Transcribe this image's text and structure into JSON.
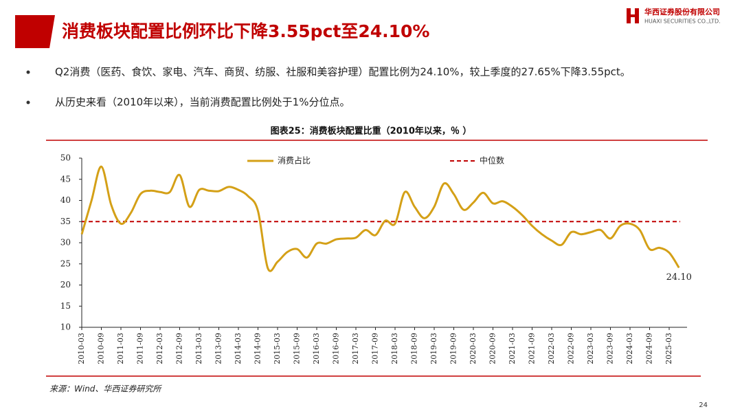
{
  "header": {
    "title": "消费板块配置比例环比下降3.55pct至24.10%",
    "logo_cn": "华西证券股份有限公司",
    "logo_en": "HUAXI SECURITIES CO.,LTD."
  },
  "bullets": [
    "Q2消费（医药、食饮、家电、汽车、商贸、纺服、社服和美容护理）配置比例为24.10%，较上季度的27.65%下降3.55pct。",
    "从历史来看（2010年以来），当前消费配置比例处于1%分位点。"
  ],
  "source": "来源：Wind、华西证券研究所",
  "page_number": "24",
  "chart_data": {
    "type": "line",
    "title": "图表25：消费板块配置比重（2010年以来，％ ）",
    "categories": [
      "2010-03",
      null,
      "2010-09",
      null,
      "2011-03",
      null,
      "2011-09",
      null,
      "2012-03",
      null,
      "2012-09",
      null,
      "2013-03",
      null,
      "2013-09",
      null,
      "2014-03",
      null,
      "2014-09",
      null,
      "2015-03",
      null,
      "2015-09",
      null,
      "2016-03",
      null,
      "2016-09",
      null,
      "2017-03",
      null,
      "2017-09",
      null,
      "2018-03",
      null,
      "2018-09",
      null,
      "2019-03",
      null,
      "2019-09",
      null,
      "2020-03",
      null,
      "2020-09",
      null,
      "2021-03",
      null,
      "2021-09",
      null,
      "2022-03",
      null,
      "2022-09",
      null,
      "2023-03",
      null,
      "2023-09",
      null,
      "2024-03",
      null,
      "2024-09",
      null,
      "2025-03",
      null
    ],
    "series": [
      {
        "name": "消费占比",
        "color": "#d4a017",
        "values": [
          32,
          40,
          48,
          39,
          34.5,
          37,
          41.5,
          42.3,
          42,
          42,
          46,
          38.5,
          42.5,
          42.3,
          42.2,
          43.2,
          42.5,
          41,
          37.5,
          24,
          25.5,
          27.8,
          28.5,
          26.5,
          29.8,
          29.8,
          30.8,
          31,
          31.2,
          33,
          31.8,
          35.2,
          34.5,
          42,
          38.5,
          35.8,
          38.5,
          44,
          41.5,
          37.8,
          39.5,
          41.8,
          39.3,
          39.8,
          38.5,
          36.5,
          34,
          32,
          30.5,
          29.5,
          32.5,
          32,
          32.5,
          33,
          31,
          34,
          34.5,
          33,
          28.5,
          28.8,
          27.65,
          24.1
        ],
        "value_labels": [
          null,
          null,
          null,
          null,
          null,
          null,
          null,
          null,
          null,
          null,
          null,
          null,
          null,
          null,
          null,
          null,
          null,
          null,
          null,
          null,
          null,
          null,
          null,
          null,
          null,
          null,
          null,
          null,
          null,
          null,
          null,
          null,
          null,
          null,
          null,
          null,
          null,
          null,
          null,
          null,
          null,
          null,
          null,
          null,
          null,
          null,
          null,
          null,
          null,
          null,
          null,
          null,
          null,
          null,
          null,
          null,
          null,
          null,
          null,
          null,
          null,
          "24.10"
        ]
      }
    ],
    "median_line": {
      "name": "中位数",
      "value": 35,
      "color": "#c00000"
    },
    "ylim": [
      10,
      50
    ],
    "yticks": [
      10,
      15,
      20,
      25,
      30,
      35,
      40,
      45,
      50
    ],
    "grid": false
  }
}
